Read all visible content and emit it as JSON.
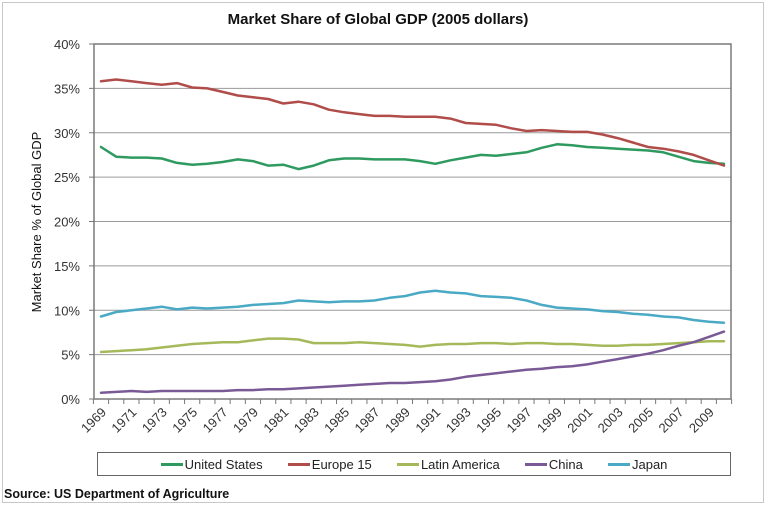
{
  "chart_data": {
    "type": "line",
    "title": "Market Share of Global GDP (2005 dollars)",
    "xlabel": "",
    "ylabel": "Market Share % of Global GDP",
    "ylim": [
      0,
      40
    ],
    "y_ticks": [
      "0%",
      "5%",
      "10%",
      "15%",
      "20%",
      "25%",
      "30%",
      "35%",
      "40%"
    ],
    "y_tick_values": [
      0,
      5,
      10,
      15,
      20,
      25,
      30,
      35,
      40
    ],
    "grid": "horizontal",
    "legend_position": "bottom",
    "x": [
      1969,
      1970,
      1971,
      1972,
      1973,
      1974,
      1975,
      1976,
      1977,
      1978,
      1979,
      1980,
      1981,
      1982,
      1983,
      1984,
      1985,
      1986,
      1987,
      1988,
      1989,
      1990,
      1991,
      1992,
      1993,
      1994,
      1995,
      1996,
      1997,
      1998,
      1999,
      2000,
      2001,
      2002,
      2003,
      2004,
      2005,
      2006,
      2007,
      2008,
      2009,
      2010
    ],
    "x_tick_labels": [
      "1969",
      "1971",
      "1973",
      "1975",
      "1977",
      "1979",
      "1981",
      "1983",
      "1985",
      "1987",
      "1989",
      "1991",
      "1993",
      "1995",
      "1997",
      "1999",
      "2001",
      "2003",
      "2005",
      "2007",
      "2009"
    ],
    "series": [
      {
        "name": "United States",
        "color": "#2e9a5f",
        "values": [
          28.4,
          27.3,
          27.2,
          27.2,
          27.1,
          26.6,
          26.4,
          26.5,
          26.7,
          27.0,
          26.8,
          26.3,
          26.4,
          25.9,
          26.3,
          26.9,
          27.1,
          27.1,
          27.0,
          27.0,
          27.0,
          26.8,
          26.5,
          26.9,
          27.2,
          27.5,
          27.4,
          27.6,
          27.8,
          28.3,
          28.7,
          28.6,
          28.4,
          28.3,
          28.2,
          28.1,
          28.0,
          27.8,
          27.3,
          26.8,
          26.6,
          26.5
        ]
      },
      {
        "name": "Europe 15",
        "color": "#b04c4a",
        "values": [
          35.8,
          36.0,
          35.8,
          35.6,
          35.4,
          35.6,
          35.1,
          35.0,
          34.6,
          34.2,
          34.0,
          33.8,
          33.3,
          33.5,
          33.2,
          32.6,
          32.3,
          32.1,
          31.9,
          31.9,
          31.8,
          31.8,
          31.8,
          31.6,
          31.1,
          31.0,
          30.9,
          30.5,
          30.2,
          30.3,
          30.2,
          30.1,
          30.1,
          29.8,
          29.4,
          28.9,
          28.4,
          28.2,
          27.9,
          27.5,
          26.9,
          26.3
        ]
      },
      {
        "name": "Latin America",
        "color": "#a5b95a",
        "values": [
          5.3,
          5.4,
          5.5,
          5.6,
          5.8,
          6.0,
          6.2,
          6.3,
          6.4,
          6.4,
          6.6,
          6.8,
          6.8,
          6.7,
          6.3,
          6.3,
          6.3,
          6.4,
          6.3,
          6.2,
          6.1,
          5.9,
          6.1,
          6.2,
          6.2,
          6.3,
          6.3,
          6.2,
          6.3,
          6.3,
          6.2,
          6.2,
          6.1,
          6.0,
          6.0,
          6.1,
          6.1,
          6.2,
          6.3,
          6.4,
          6.5,
          6.5
        ]
      },
      {
        "name": "China",
        "color": "#7a5a96",
        "values": [
          0.7,
          0.8,
          0.9,
          0.8,
          0.9,
          0.9,
          0.9,
          0.9,
          0.9,
          1.0,
          1.0,
          1.1,
          1.1,
          1.2,
          1.3,
          1.4,
          1.5,
          1.6,
          1.7,
          1.8,
          1.8,
          1.9,
          2.0,
          2.2,
          2.5,
          2.7,
          2.9,
          3.1,
          3.3,
          3.4,
          3.6,
          3.7,
          3.9,
          4.2,
          4.5,
          4.8,
          5.1,
          5.5,
          6.0,
          6.4,
          7.0,
          7.6
        ]
      },
      {
        "name": "Japan",
        "color": "#4aa9c4",
        "values": [
          9.3,
          9.8,
          10.0,
          10.2,
          10.4,
          10.1,
          10.3,
          10.2,
          10.3,
          10.4,
          10.6,
          10.7,
          10.8,
          11.1,
          11.0,
          10.9,
          11.0,
          11.0,
          11.1,
          11.4,
          11.6,
          12.0,
          12.2,
          12.0,
          11.9,
          11.6,
          11.5,
          11.4,
          11.1,
          10.6,
          10.3,
          10.2,
          10.1,
          9.9,
          9.8,
          9.6,
          9.5,
          9.3,
          9.2,
          8.9,
          8.7,
          8.6
        ]
      }
    ]
  },
  "source": "Source: US Department of Agriculture"
}
